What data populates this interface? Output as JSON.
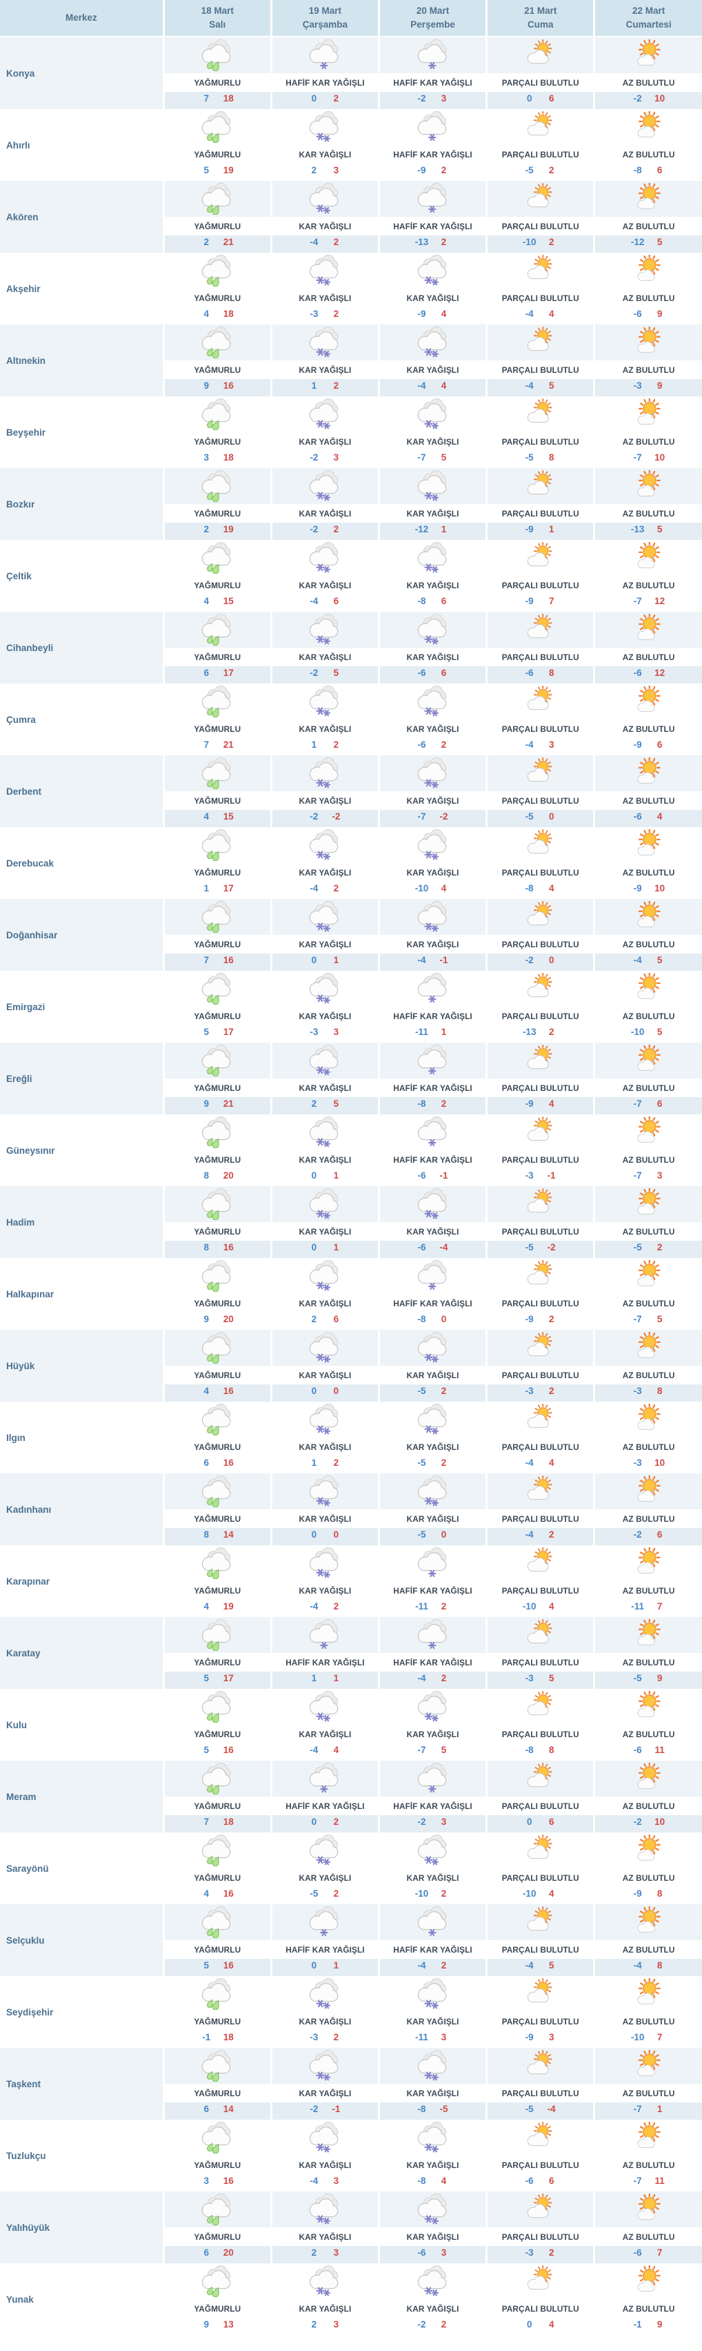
{
  "colors": {
    "header_bg": "#d2e5ee",
    "row_alt_bg": "#edf3f7",
    "row_alt_temp_bg": "#e3edf3",
    "header_text": "#54718e",
    "district_text": "#4c7190",
    "condition_text": "#3e4a57",
    "min_temp": "#4787c6",
    "max_temp": "#d04b49",
    "separator": "#ffffff",
    "condition_band_bg": "#ffffff"
  },
  "icon_map": {
    "YAĞMURLU": "rain-icon",
    "KAR YAĞIŞLI": "snow-icon",
    "HAFİF KAR YAĞIŞLI": "light-snow-icon",
    "PARÇALI BULUTLU": "partly-cloudy-icon",
    "AZ BULUTLU": "few-clouds-icon"
  },
  "header": {
    "district_col": "Merkez",
    "days": [
      {
        "date": "18 Mart",
        "weekday": "Salı"
      },
      {
        "date": "19 Mart",
        "weekday": "Çarşamba"
      },
      {
        "date": "20 Mart",
        "weekday": "Perşembe"
      },
      {
        "date": "21 Mart",
        "weekday": "Cuma"
      },
      {
        "date": "22 Mart",
        "weekday": "Cumartesi"
      }
    ]
  },
  "rows": [
    {
      "district": "Konya",
      "cells": [
        {
          "condition": "YAĞMURLU",
          "min": 7,
          "max": 18
        },
        {
          "condition": "HAFİF KAR YAĞIŞLI",
          "min": 0,
          "max": 2
        },
        {
          "condition": "HAFİF KAR YAĞIŞLI",
          "min": -2,
          "max": 3
        },
        {
          "condition": "PARÇALI BULUTLU",
          "min": 0,
          "max": 6
        },
        {
          "condition": "AZ BULUTLU",
          "min": -2,
          "max": 10
        }
      ]
    },
    {
      "district": "Ahırlı",
      "cells": [
        {
          "condition": "YAĞMURLU",
          "min": 5,
          "max": 19
        },
        {
          "condition": "KAR YAĞIŞLI",
          "min": 2,
          "max": 3
        },
        {
          "condition": "HAFİF KAR YAĞIŞLI",
          "min": -9,
          "max": 2
        },
        {
          "condition": "PARÇALI BULUTLU",
          "min": -5,
          "max": 2
        },
        {
          "condition": "AZ BULUTLU",
          "min": -8,
          "max": 6
        }
      ]
    },
    {
      "district": "Akören",
      "cells": [
        {
          "condition": "YAĞMURLU",
          "min": 2,
          "max": 21
        },
        {
          "condition": "KAR YAĞIŞLI",
          "min": -4,
          "max": 2
        },
        {
          "condition": "HAFİF KAR YAĞIŞLI",
          "min": -13,
          "max": 2
        },
        {
          "condition": "PARÇALI BULUTLU",
          "min": -10,
          "max": 2
        },
        {
          "condition": "AZ BULUTLU",
          "min": -12,
          "max": 5
        }
      ]
    },
    {
      "district": "Akşehir",
      "cells": [
        {
          "condition": "YAĞMURLU",
          "min": 4,
          "max": 18
        },
        {
          "condition": "KAR YAĞIŞLI",
          "min": -3,
          "max": 2
        },
        {
          "condition": "KAR YAĞIŞLI",
          "min": -9,
          "max": 4
        },
        {
          "condition": "PARÇALI BULUTLU",
          "min": -4,
          "max": 4
        },
        {
          "condition": "AZ BULUTLU",
          "min": -6,
          "max": 9
        }
      ]
    },
    {
      "district": "Altınekin",
      "cells": [
        {
          "condition": "YAĞMURLU",
          "min": 9,
          "max": 16
        },
        {
          "condition": "KAR YAĞIŞLI",
          "min": 1,
          "max": 2
        },
        {
          "condition": "KAR YAĞIŞLI",
          "min": -4,
          "max": 4
        },
        {
          "condition": "PARÇALI BULUTLU",
          "min": -4,
          "max": 5
        },
        {
          "condition": "AZ BULUTLU",
          "min": -3,
          "max": 9
        }
      ]
    },
    {
      "district": "Beyşehir",
      "cells": [
        {
          "condition": "YAĞMURLU",
          "min": 3,
          "max": 18
        },
        {
          "condition": "KAR YAĞIŞLI",
          "min": -2,
          "max": 3
        },
        {
          "condition": "KAR YAĞIŞLI",
          "min": -7,
          "max": 5
        },
        {
          "condition": "PARÇALI BULUTLU",
          "min": -5,
          "max": 8
        },
        {
          "condition": "AZ BULUTLU",
          "min": -7,
          "max": 10
        }
      ]
    },
    {
      "district": "Bozkır",
      "cells": [
        {
          "condition": "YAĞMURLU",
          "min": 2,
          "max": 19
        },
        {
          "condition": "KAR YAĞIŞLI",
          "min": -2,
          "max": 2
        },
        {
          "condition": "KAR YAĞIŞLI",
          "min": -12,
          "max": 1
        },
        {
          "condition": "PARÇALI BULUTLU",
          "min": -9,
          "max": 1
        },
        {
          "condition": "AZ BULUTLU",
          "min": -13,
          "max": 5
        }
      ]
    },
    {
      "district": "Çeltik",
      "cells": [
        {
          "condition": "YAĞMURLU",
          "min": 4,
          "max": 15
        },
        {
          "condition": "KAR YAĞIŞLI",
          "min": -4,
          "max": 6
        },
        {
          "condition": "KAR YAĞIŞLI",
          "min": -8,
          "max": 6
        },
        {
          "condition": "PARÇALI BULUTLU",
          "min": -9,
          "max": 7
        },
        {
          "condition": "AZ BULUTLU",
          "min": -7,
          "max": 12
        }
      ]
    },
    {
      "district": "Cihanbeyli",
      "cells": [
        {
          "condition": "YAĞMURLU",
          "min": 6,
          "max": 17
        },
        {
          "condition": "KAR YAĞIŞLI",
          "min": -2,
          "max": 5
        },
        {
          "condition": "KAR YAĞIŞLI",
          "min": -6,
          "max": 6
        },
        {
          "condition": "PARÇALI BULUTLU",
          "min": -6,
          "max": 8
        },
        {
          "condition": "AZ BULUTLU",
          "min": -6,
          "max": 12
        }
      ]
    },
    {
      "district": "Çumra",
      "cells": [
        {
          "condition": "YAĞMURLU",
          "min": 7,
          "max": 21
        },
        {
          "condition": "KAR YAĞIŞLI",
          "min": 1,
          "max": 2
        },
        {
          "condition": "KAR YAĞIŞLI",
          "min": -6,
          "max": 2
        },
        {
          "condition": "PARÇALI BULUTLU",
          "min": -4,
          "max": 3
        },
        {
          "condition": "AZ BULUTLU",
          "min": -9,
          "max": 6
        }
      ]
    },
    {
      "district": "Derbent",
      "cells": [
        {
          "condition": "YAĞMURLU",
          "min": 4,
          "max": 15
        },
        {
          "condition": "KAR YAĞIŞLI",
          "min": -2,
          "max": -2
        },
        {
          "condition": "KAR YAĞIŞLI",
          "min": -7,
          "max": -2
        },
        {
          "condition": "PARÇALI BULUTLU",
          "min": -5,
          "max": 0
        },
        {
          "condition": "AZ BULUTLU",
          "min": -6,
          "max": 4
        }
      ]
    },
    {
      "district": "Derebucak",
      "cells": [
        {
          "condition": "YAĞMURLU",
          "min": 1,
          "max": 17
        },
        {
          "condition": "KAR YAĞIŞLI",
          "min": -4,
          "max": 2
        },
        {
          "condition": "KAR YAĞIŞLI",
          "min": -10,
          "max": 4
        },
        {
          "condition": "PARÇALI BULUTLU",
          "min": -8,
          "max": 4
        },
        {
          "condition": "AZ BULUTLU",
          "min": -9,
          "max": 10
        }
      ]
    },
    {
      "district": "Doğanhisar",
      "cells": [
        {
          "condition": "YAĞMURLU",
          "min": 7,
          "max": 16
        },
        {
          "condition": "KAR YAĞIŞLI",
          "min": 0,
          "max": 1
        },
        {
          "condition": "KAR YAĞIŞLI",
          "min": -4,
          "max": -1
        },
        {
          "condition": "PARÇALI BULUTLU",
          "min": -2,
          "max": 0
        },
        {
          "condition": "AZ BULUTLU",
          "min": -4,
          "max": 5
        }
      ]
    },
    {
      "district": "Emirgazi",
      "cells": [
        {
          "condition": "YAĞMURLU",
          "min": 5,
          "max": 17
        },
        {
          "condition": "KAR YAĞIŞLI",
          "min": -3,
          "max": 3
        },
        {
          "condition": "HAFİF KAR YAĞIŞLI",
          "min": -11,
          "max": 1
        },
        {
          "condition": "PARÇALI BULUTLU",
          "min": -13,
          "max": 2
        },
        {
          "condition": "AZ BULUTLU",
          "min": -10,
          "max": 5
        }
      ]
    },
    {
      "district": "Ereğli",
      "cells": [
        {
          "condition": "YAĞMURLU",
          "min": 9,
          "max": 21
        },
        {
          "condition": "KAR YAĞIŞLI",
          "min": 2,
          "max": 5
        },
        {
          "condition": "HAFİF KAR YAĞIŞLI",
          "min": -8,
          "max": 2
        },
        {
          "condition": "PARÇALI BULUTLU",
          "min": -9,
          "max": 4
        },
        {
          "condition": "AZ BULUTLU",
          "min": -7,
          "max": 6
        }
      ]
    },
    {
      "district": "Güneysınır",
      "cells": [
        {
          "condition": "YAĞMURLU",
          "min": 8,
          "max": 20
        },
        {
          "condition": "KAR YAĞIŞLI",
          "min": 0,
          "max": 1
        },
        {
          "condition": "HAFİF KAR YAĞIŞLI",
          "min": -6,
          "max": -1
        },
        {
          "condition": "PARÇALI BULUTLU",
          "min": -3,
          "max": -1
        },
        {
          "condition": "AZ BULUTLU",
          "min": -7,
          "max": 3
        }
      ]
    },
    {
      "district": "Hadim",
      "cells": [
        {
          "condition": "YAĞMURLU",
          "min": 8,
          "max": 16
        },
        {
          "condition": "KAR YAĞIŞLI",
          "min": 0,
          "max": 1
        },
        {
          "condition": "KAR YAĞIŞLI",
          "min": -6,
          "max": -4
        },
        {
          "condition": "PARÇALI BULUTLU",
          "min": -5,
          "max": -2
        },
        {
          "condition": "AZ BULUTLU",
          "min": -5,
          "max": 2
        }
      ]
    },
    {
      "district": "Halkapınar",
      "cells": [
        {
          "condition": "YAĞMURLU",
          "min": 9,
          "max": 20
        },
        {
          "condition": "KAR YAĞIŞLI",
          "min": 2,
          "max": 6
        },
        {
          "condition": "HAFİF KAR YAĞIŞLI",
          "min": -8,
          "max": 0
        },
        {
          "condition": "PARÇALI BULUTLU",
          "min": -9,
          "max": 2
        },
        {
          "condition": "AZ BULUTLU",
          "min": -7,
          "max": 5
        }
      ]
    },
    {
      "district": "Hüyük",
      "cells": [
        {
          "condition": "YAĞMURLU",
          "min": 4,
          "max": 16
        },
        {
          "condition": "KAR YAĞIŞLI",
          "min": 0,
          "max": 0
        },
        {
          "condition": "KAR YAĞIŞLI",
          "min": -5,
          "max": 2
        },
        {
          "condition": "PARÇALI BULUTLU",
          "min": -3,
          "max": 2
        },
        {
          "condition": "AZ BULUTLU",
          "min": -3,
          "max": 8
        }
      ]
    },
    {
      "district": "Ilgın",
      "cells": [
        {
          "condition": "YAĞMURLU",
          "min": 6,
          "max": 16
        },
        {
          "condition": "KAR YAĞIŞLI",
          "min": 1,
          "max": 2
        },
        {
          "condition": "KAR YAĞIŞLI",
          "min": -5,
          "max": 2
        },
        {
          "condition": "PARÇALI BULUTLU",
          "min": -4,
          "max": 4
        },
        {
          "condition": "AZ BULUTLU",
          "min": -3,
          "max": 10
        }
      ]
    },
    {
      "district": "Kadınhanı",
      "cells": [
        {
          "condition": "YAĞMURLU",
          "min": 8,
          "max": 14
        },
        {
          "condition": "KAR YAĞIŞLI",
          "min": 0,
          "max": 0
        },
        {
          "condition": "KAR YAĞIŞLI",
          "min": -5,
          "max": 0
        },
        {
          "condition": "PARÇALI BULUTLU",
          "min": -4,
          "max": 2
        },
        {
          "condition": "AZ BULUTLU",
          "min": -2,
          "max": 6
        }
      ]
    },
    {
      "district": "Karapınar",
      "cells": [
        {
          "condition": "YAĞMURLU",
          "min": 4,
          "max": 19
        },
        {
          "condition": "KAR YAĞIŞLI",
          "min": -4,
          "max": 2
        },
        {
          "condition": "HAFİF KAR YAĞIŞLI",
          "min": -11,
          "max": 2
        },
        {
          "condition": "PARÇALI BULUTLU",
          "min": -10,
          "max": 4
        },
        {
          "condition": "AZ BULUTLU",
          "min": -11,
          "max": 7
        }
      ]
    },
    {
      "district": "Karatay",
      "cells": [
        {
          "condition": "YAĞMURLU",
          "min": 5,
          "max": 17
        },
        {
          "condition": "HAFİF KAR YAĞIŞLI",
          "min": 1,
          "max": 1
        },
        {
          "condition": "HAFİF KAR YAĞIŞLI",
          "min": -4,
          "max": 2
        },
        {
          "condition": "PARÇALI BULUTLU",
          "min": -3,
          "max": 5
        },
        {
          "condition": "AZ BULUTLU",
          "min": -5,
          "max": 9
        }
      ]
    },
    {
      "district": "Kulu",
      "cells": [
        {
          "condition": "YAĞMURLU",
          "min": 5,
          "max": 16
        },
        {
          "condition": "KAR YAĞIŞLI",
          "min": -4,
          "max": 4
        },
        {
          "condition": "KAR YAĞIŞLI",
          "min": -7,
          "max": 5
        },
        {
          "condition": "PARÇALI BULUTLU",
          "min": -8,
          "max": 8
        },
        {
          "condition": "AZ BULUTLU",
          "min": -6,
          "max": 11
        }
      ]
    },
    {
      "district": "Meram",
      "cells": [
        {
          "condition": "YAĞMURLU",
          "min": 7,
          "max": 18
        },
        {
          "condition": "HAFİF KAR YAĞIŞLI",
          "min": 0,
          "max": 2
        },
        {
          "condition": "HAFİF KAR YAĞIŞLI",
          "min": -2,
          "max": 3
        },
        {
          "condition": "PARÇALI BULUTLU",
          "min": 0,
          "max": 6
        },
        {
          "condition": "AZ BULUTLU",
          "min": -2,
          "max": 10
        }
      ]
    },
    {
      "district": "Sarayönü",
      "cells": [
        {
          "condition": "YAĞMURLU",
          "min": 4,
          "max": 16
        },
        {
          "condition": "KAR YAĞIŞLI",
          "min": -5,
          "max": 2
        },
        {
          "condition": "KAR YAĞIŞLI",
          "min": -10,
          "max": 2
        },
        {
          "condition": "PARÇALI BULUTLU",
          "min": -10,
          "max": 4
        },
        {
          "condition": "AZ BULUTLU",
          "min": -9,
          "max": 8
        }
      ]
    },
    {
      "district": "Selçuklu",
      "cells": [
        {
          "condition": "YAĞMURLU",
          "min": 5,
          "max": 16
        },
        {
          "condition": "HAFİF KAR YAĞIŞLI",
          "min": 0,
          "max": 1
        },
        {
          "condition": "HAFİF KAR YAĞIŞLI",
          "min": -4,
          "max": 2
        },
        {
          "condition": "PARÇALI BULUTLU",
          "min": -4,
          "max": 5
        },
        {
          "condition": "AZ BULUTLU",
          "min": -4,
          "max": 8
        }
      ]
    },
    {
      "district": "Seydişehir",
      "cells": [
        {
          "condition": "YAĞMURLU",
          "min": -1,
          "max": 18
        },
        {
          "condition": "KAR YAĞIŞLI",
          "min": -3,
          "max": 2
        },
        {
          "condition": "KAR YAĞIŞLI",
          "min": -11,
          "max": 3
        },
        {
          "condition": "PARÇALI BULUTLU",
          "min": -9,
          "max": 3
        },
        {
          "condition": "AZ BULUTLU",
          "min": -10,
          "max": 7
        }
      ]
    },
    {
      "district": "Taşkent",
      "cells": [
        {
          "condition": "YAĞMURLU",
          "min": 6,
          "max": 14
        },
        {
          "condition": "KAR YAĞIŞLI",
          "min": -2,
          "max": -1
        },
        {
          "condition": "KAR YAĞIŞLI",
          "min": -8,
          "max": -5
        },
        {
          "condition": "PARÇALI BULUTLU",
          "min": -5,
          "max": -4
        },
        {
          "condition": "AZ BULUTLU",
          "min": -7,
          "max": 1
        }
      ]
    },
    {
      "district": "Tuzlukçu",
      "cells": [
        {
          "condition": "YAĞMURLU",
          "min": 3,
          "max": 16
        },
        {
          "condition": "KAR YAĞIŞLI",
          "min": -4,
          "max": 3
        },
        {
          "condition": "KAR YAĞIŞLI",
          "min": -8,
          "max": 4
        },
        {
          "condition": "PARÇALI BULUTLU",
          "min": -6,
          "max": 6
        },
        {
          "condition": "AZ BULUTLU",
          "min": -7,
          "max": 11
        }
      ]
    },
    {
      "district": "Yalıhüyük",
      "cells": [
        {
          "condition": "YAĞMURLU",
          "min": 6,
          "max": 20
        },
        {
          "condition": "KAR YAĞIŞLI",
          "min": 2,
          "max": 3
        },
        {
          "condition": "KAR YAĞIŞLI",
          "min": -6,
          "max": 3
        },
        {
          "condition": "PARÇALI BULUTLU",
          "min": -3,
          "max": 2
        },
        {
          "condition": "AZ BULUTLU",
          "min": -6,
          "max": 7
        }
      ]
    },
    {
      "district": "Yunak",
      "cells": [
        {
          "condition": "YAĞMURLU",
          "min": 9,
          "max": 13
        },
        {
          "condition": "KAR YAĞIŞLI",
          "min": 2,
          "max": 3
        },
        {
          "condition": "KAR YAĞIŞLI",
          "min": -2,
          "max": 2
        },
        {
          "condition": "PARÇALI BULUTLU",
          "min": 0,
          "max": 4
        },
        {
          "condition": "AZ BULUTLU",
          "min": -1,
          "max": 9
        }
      ]
    }
  ]
}
